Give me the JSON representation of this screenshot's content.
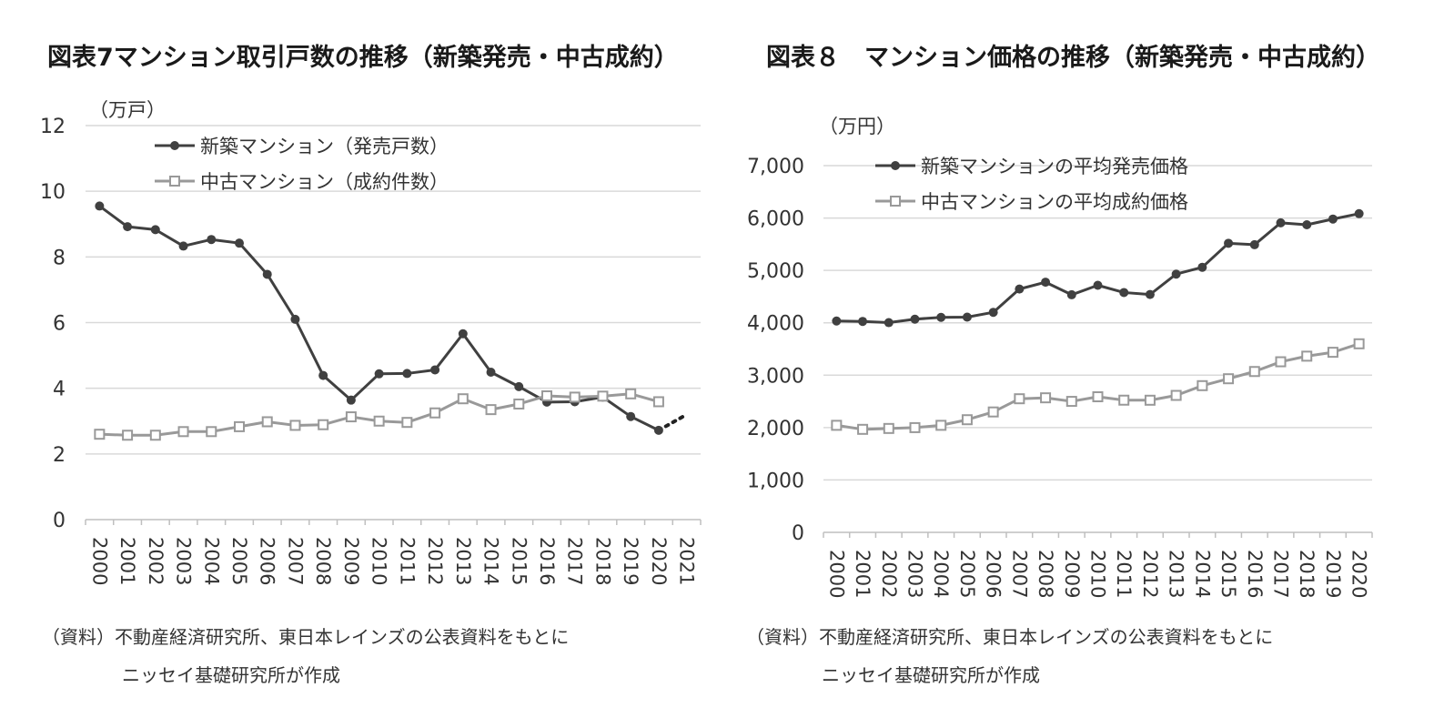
{
  "chart_data": [
    {
      "type": "line",
      "title": "図表7マンション取引戸数の推移（新築発売・中古成約）",
      "unit_label": "（万戸）",
      "ylim": [
        0,
        12
      ],
      "yticks": [
        0,
        2,
        4,
        6,
        8,
        10,
        12
      ],
      "ytick_labels": [
        "0",
        "2",
        "4",
        "6",
        "8",
        "10",
        "12"
      ],
      "grid": true,
      "legend_position": "top-left",
      "categories": [
        "2000",
        "2001",
        "2002",
        "2003",
        "2004",
        "2005",
        "2006",
        "2007",
        "2008",
        "2009",
        "2010",
        "2011",
        "2012",
        "2013",
        "2014",
        "2015",
        "2016",
        "2017",
        "2018",
        "2019",
        "2020",
        "2021"
      ],
      "series": [
        {
          "name": "新築マンション（発売戸数）",
          "color": "#404040",
          "marker": "filled-circle",
          "values": [
            9.55,
            8.92,
            8.83,
            8.33,
            8.53,
            8.42,
            7.47,
            6.1,
            4.39,
            3.64,
            4.44,
            4.45,
            4.56,
            5.66,
            4.49,
            4.05,
            3.58,
            3.59,
            3.73,
            3.14,
            2.72,
            null
          ],
          "projection": {
            "from": "2020",
            "to": "2021",
            "values": [
              2.72,
              3.2
            ],
            "style": "dotted"
          }
        },
        {
          "name": "中古マンション（成約件数）",
          "color": "#999999",
          "marker": "hollow-square",
          "values": [
            2.6,
            2.57,
            2.57,
            2.68,
            2.68,
            2.83,
            2.98,
            2.87,
            2.89,
            3.13,
            3.0,
            2.96,
            3.25,
            3.68,
            3.35,
            3.52,
            3.77,
            3.73,
            3.76,
            3.83,
            3.59,
            null
          ]
        }
      ],
      "source_lines": [
        "（資料）不動産経済研究所、東日本レインズの公表資料をもとに",
        "ニッセイ基礎研究所が作成"
      ]
    },
    {
      "type": "line",
      "title": "図表８　マンション価格の推移（新築発売・中古成約）",
      "unit_label": "（万円）",
      "ylim": [
        0,
        7000
      ],
      "yticks": [
        0,
        1000,
        2000,
        3000,
        4000,
        5000,
        6000,
        7000
      ],
      "ytick_labels": [
        "0",
        "1,000",
        "2,000",
        "3,000",
        "4,000",
        "5,000",
        "6,000",
        "7,000"
      ],
      "grid": true,
      "legend_position": "top-left",
      "categories": [
        "2000",
        "2001",
        "2002",
        "2003",
        "2004",
        "2005",
        "2006",
        "2007",
        "2008",
        "2009",
        "2010",
        "2011",
        "2012",
        "2013",
        "2014",
        "2015",
        "2016",
        "2017",
        "2018",
        "2019",
        "2020"
      ],
      "series": [
        {
          "name": "新築マンションの平均発売価格",
          "color": "#404040",
          "marker": "filled-circle",
          "values": [
            4034,
            4026,
            4003,
            4069,
            4104,
            4108,
            4200,
            4644,
            4775,
            4535,
            4716,
            4578,
            4540,
            4929,
            5060,
            5518,
            5490,
            5908,
            5871,
            5980,
            6083
          ]
        },
        {
          "name": "中古マンションの平均成約価格",
          "color": "#999999",
          "marker": "hollow-square",
          "values": [
            2043,
            1966,
            1983,
            1999,
            2043,
            2150,
            2298,
            2550,
            2568,
            2500,
            2588,
            2523,
            2522,
            2614,
            2800,
            2932,
            3070,
            3256,
            3363,
            3437,
            3599
          ]
        }
      ],
      "source_lines": [
        "（資料）不動産経済研究所、東日本レインズの公表資料をもとに",
        "ニッセイ基礎研究所が作成"
      ]
    }
  ]
}
